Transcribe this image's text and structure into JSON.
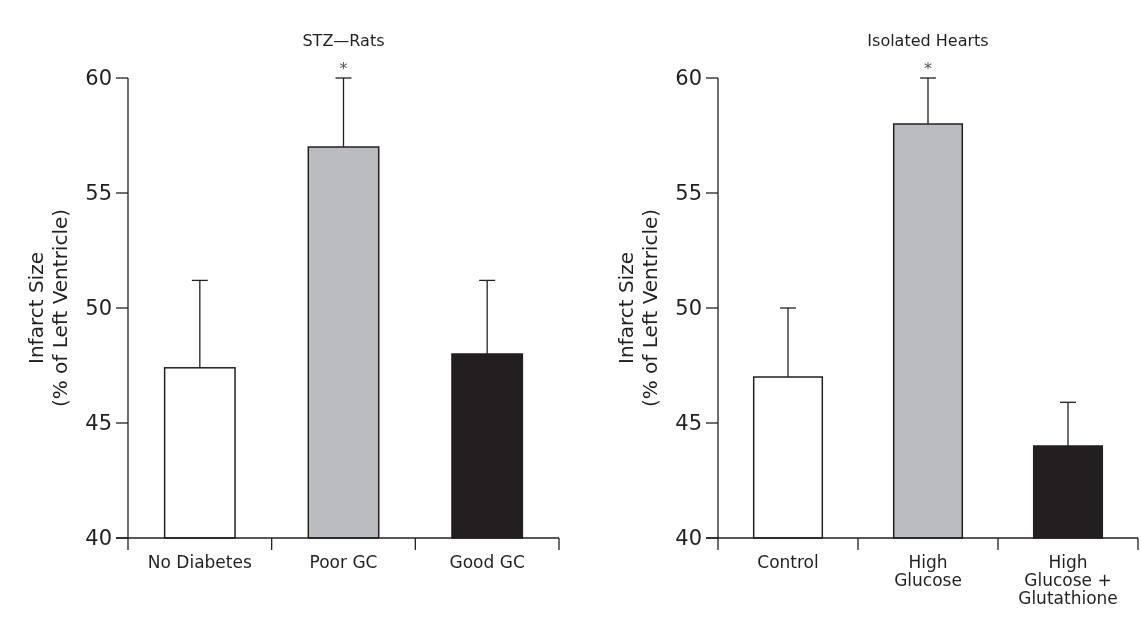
{
  "chart_data": [
    {
      "type": "bar",
      "title": "STZ—Rats",
      "ylabel": "Infarct Size\n(% of Left Ventricle)",
      "categories": [
        "No Diabetes",
        "Poor GC",
        "Good GC"
      ],
      "values": [
        47.4,
        57,
        48
      ],
      "colors": [
        "#ffffff",
        "#bbbcbf",
        "#231f20"
      ],
      "errors": [
        [
          47.4,
          51.2
        ],
        [
          57,
          60
        ],
        [
          48,
          51.2
        ]
      ],
      "ylim": [
        40,
        60
      ],
      "yticks": [
        40,
        45,
        50,
        55,
        60
      ],
      "annotations": [
        {
          "text": "*",
          "x": "Poor GC",
          "y": 60
        }
      ]
    },
    {
      "type": "bar",
      "title": "Isolated Hearts",
      "ylabel": "Infarct Size\n(% of Left Ventricle)",
      "categories": [
        "Control",
        "High\nGlucose",
        "High\nGlucose +\nGlutathione"
      ],
      "values": [
        47,
        58,
        44
      ],
      "colors": [
        "#ffffff",
        "#bbbcbf",
        "#231f20"
      ],
      "errors": [
        [
          47,
          50
        ],
        [
          58,
          60
        ],
        [
          44,
          45.9
        ]
      ],
      "ylim": [
        40,
        60
      ],
      "yticks": [
        40,
        45,
        50,
        55,
        60
      ],
      "annotations": [
        {
          "text": "*",
          "x": "High\nGlucose",
          "y": 60
        }
      ]
    }
  ]
}
